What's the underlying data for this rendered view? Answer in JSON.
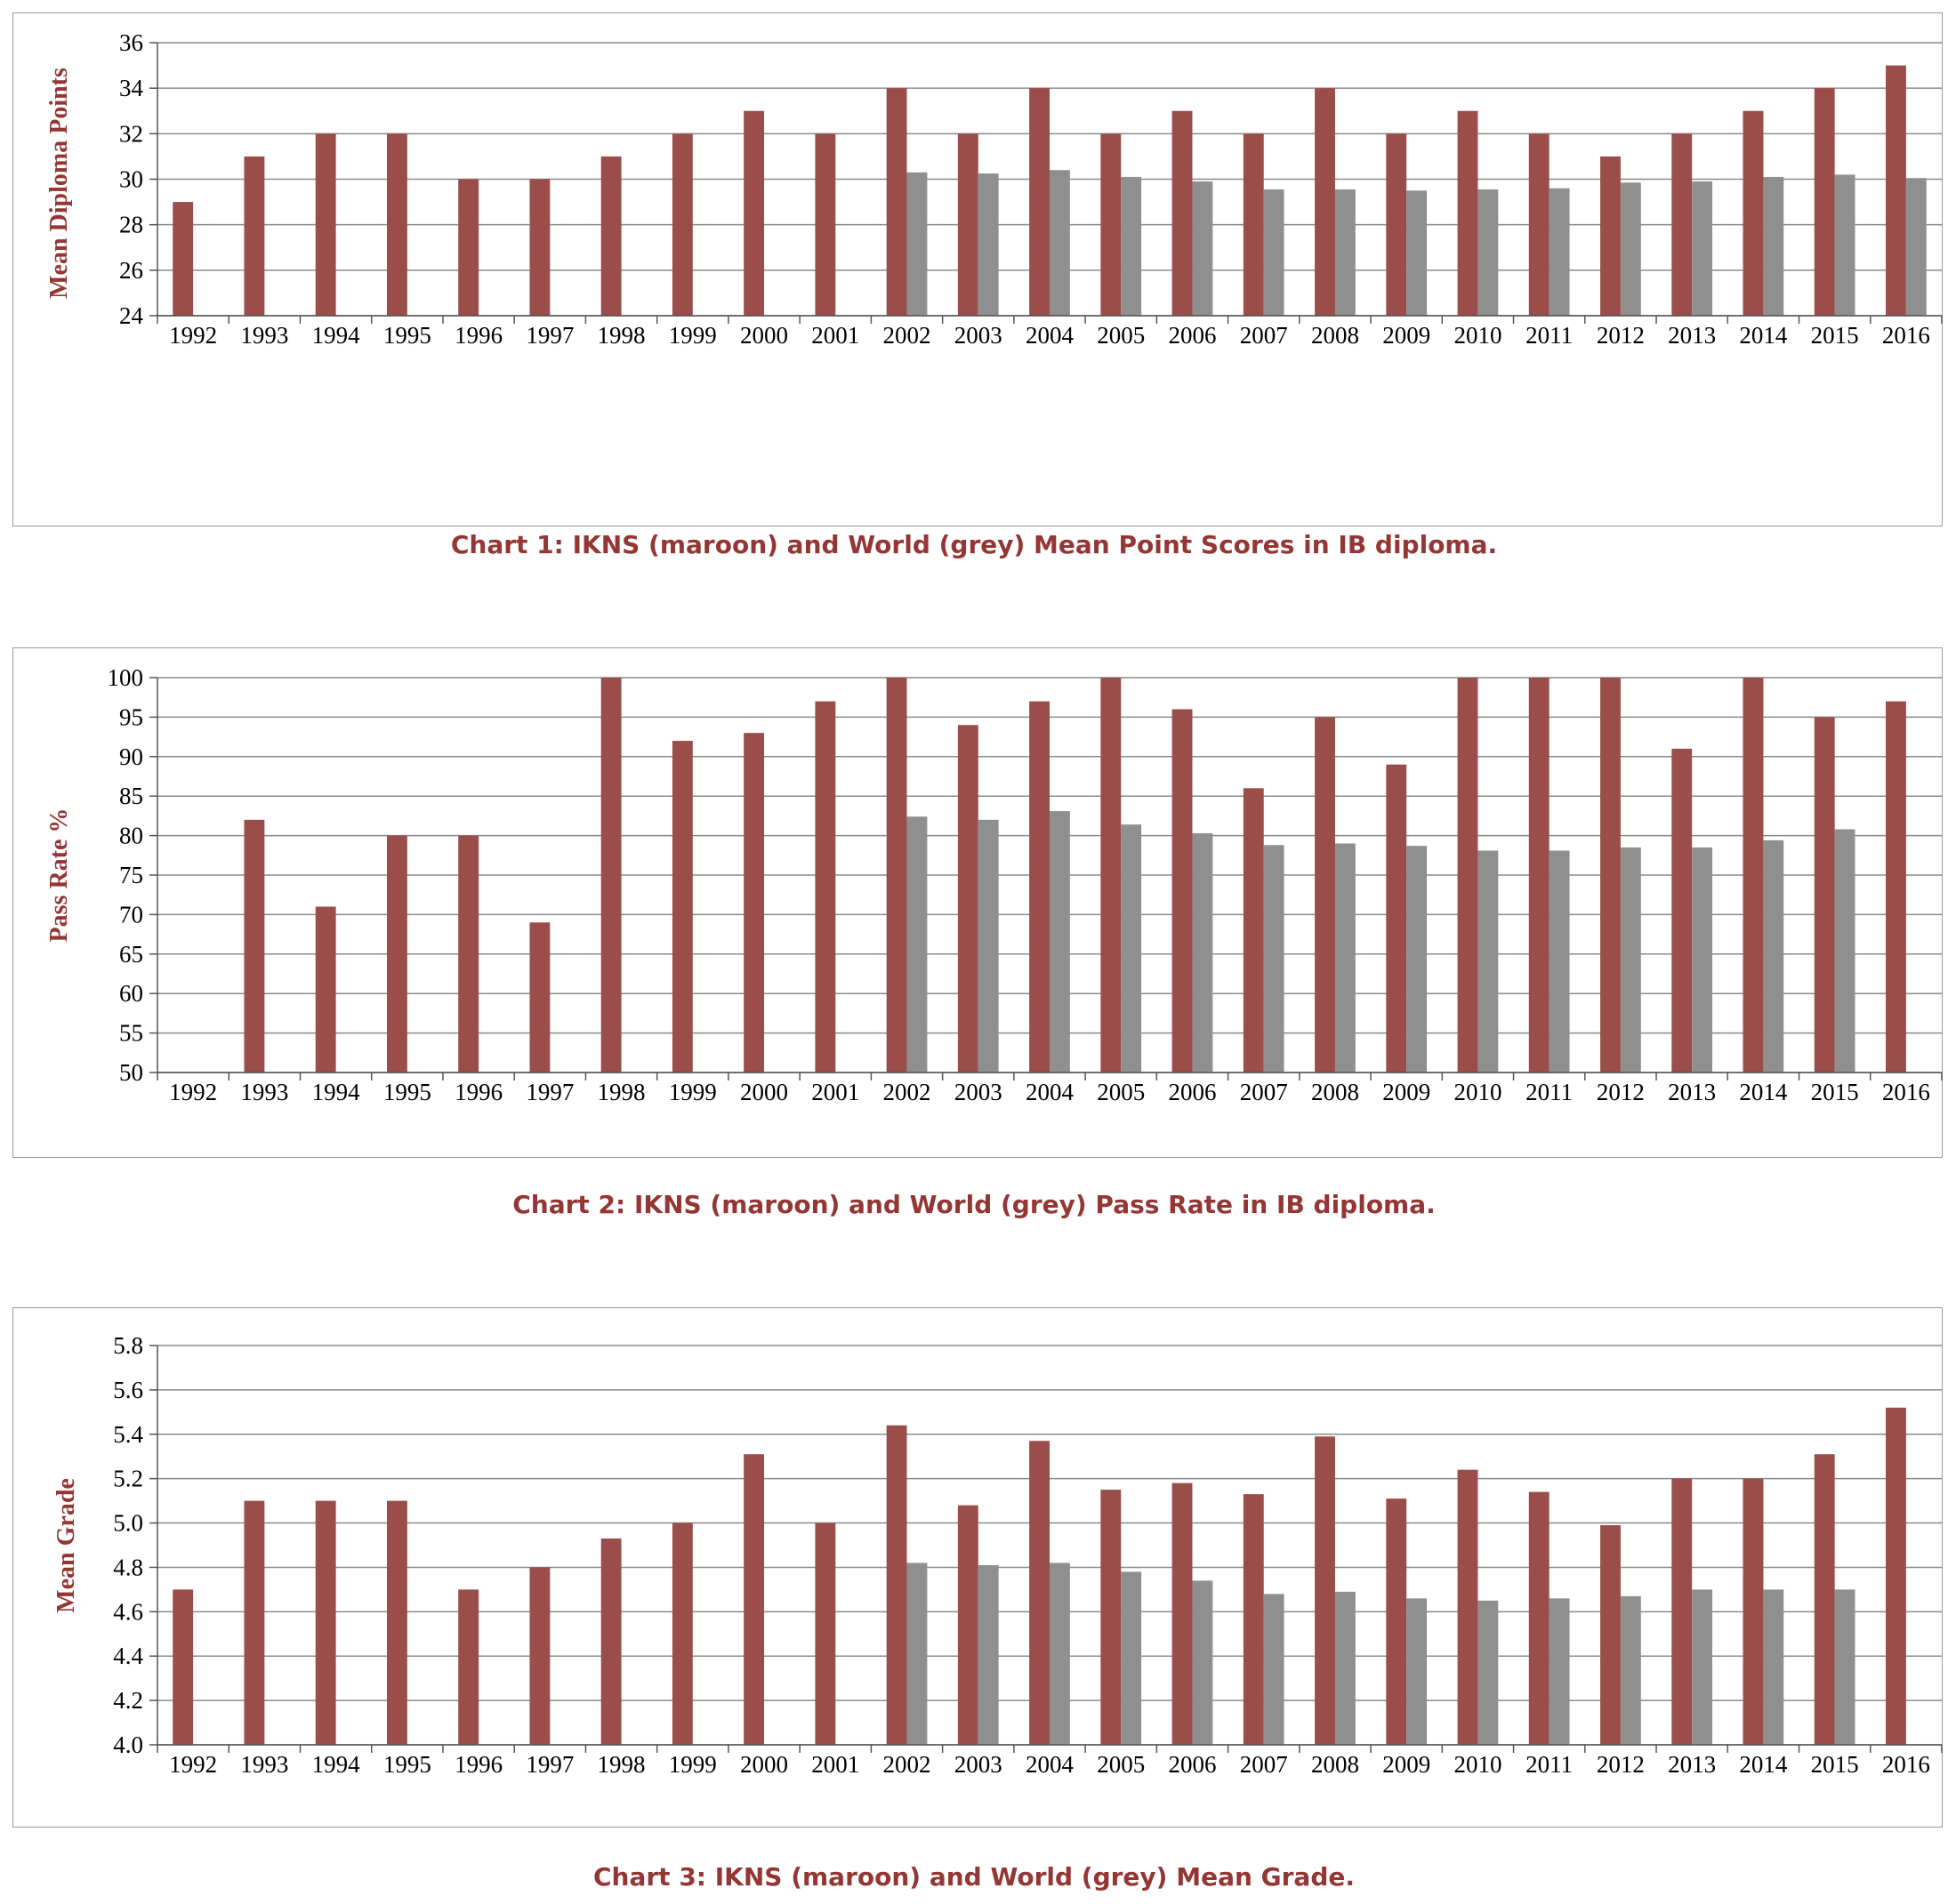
{
  "colors": {
    "ikns": "#9b4d49",
    "world": "#8f8f8f",
    "label": "#943634",
    "grid": "#8a8a8a"
  },
  "captions": {
    "chart1": "Chart 1:  IKNS (maroon) and World (grey) Mean Point Scores in IB diploma.",
    "chart2": "Chart 2:  IKNS (maroon) and World (grey) Pass Rate in IB diploma.",
    "chart3": "Chart 3:  IKNS (maroon) and World (grey) Mean Grade."
  },
  "chart_data": [
    {
      "type": "bar",
      "title": "Chart 1:  IKNS (maroon) and World (grey) Mean Point Scores in IB diploma.",
      "ylabel": "Mean Diploma Points",
      "xlabel": "",
      "ylim": [
        24,
        36
      ],
      "yticks": [
        "24",
        "26",
        "28",
        "30",
        "32",
        "34",
        "36"
      ],
      "grid": true,
      "categories": [
        "1992",
        "1993",
        "1994",
        "1995",
        "1996",
        "1997",
        "1998",
        "1999",
        "2000",
        "2001",
        "2002",
        "2003",
        "2004",
        "2005",
        "2006",
        "2007",
        "2008",
        "2009",
        "2010",
        "2011",
        "2012",
        "2013",
        "2014",
        "2015",
        "2016"
      ],
      "series": [
        {
          "name": "IKNS",
          "color": "#9b4d49",
          "values": [
            29,
            31,
            32,
            32,
            30,
            30,
            31,
            32,
            33,
            32,
            34,
            32,
            34,
            32,
            33,
            32,
            34,
            32,
            33,
            32,
            31,
            32,
            33,
            34,
            35
          ]
        },
        {
          "name": "World",
          "color": "#8f8f8f",
          "values": [
            null,
            null,
            null,
            null,
            null,
            null,
            null,
            null,
            null,
            null,
            30.3,
            30.25,
            30.4,
            30.1,
            29.9,
            29.55,
            29.55,
            29.5,
            29.55,
            29.6,
            29.85,
            29.9,
            30.1,
            30.2,
            30.05
          ]
        }
      ]
    },
    {
      "type": "bar",
      "title": "Chart 2:  IKNS (maroon) and World (grey) Pass Rate in IB diploma.",
      "ylabel": "Pass Rate %",
      "xlabel": "",
      "ylim": [
        50,
        100
      ],
      "yticks": [
        "50",
        "55",
        "60",
        "65",
        "70",
        "75",
        "80",
        "85",
        "90",
        "95",
        "100"
      ],
      "grid": true,
      "categories": [
        "1992",
        "1993",
        "1994",
        "1995",
        "1996",
        "1997",
        "1998",
        "1999",
        "2000",
        "2001",
        "2002",
        "2003",
        "2004",
        "2005",
        "2006",
        "2007",
        "2008",
        "2009",
        "2010",
        "2011",
        "2012",
        "2013",
        "2014",
        "2015",
        "2016"
      ],
      "series": [
        {
          "name": "IKNS",
          "color": "#9b4d49",
          "values": [
            null,
            82,
            71,
            80,
            80,
            69,
            100,
            92,
            93,
            97,
            100,
            94,
            97,
            100,
            96,
            86,
            95,
            89,
            100,
            100,
            100,
            91,
            100,
            95,
            97
          ]
        },
        {
          "name": "World",
          "color": "#8f8f8f",
          "values": [
            null,
            null,
            null,
            null,
            null,
            null,
            null,
            null,
            null,
            null,
            82.4,
            82,
            83.1,
            81.4,
            80.3,
            78.8,
            79,
            78.7,
            78.1,
            78.1,
            78.5,
            78.5,
            79.4,
            80.8,
            null
          ]
        }
      ]
    },
    {
      "type": "bar",
      "title": "Chart 3:  IKNS (maroon) and World (grey) Mean Grade.",
      "ylabel": "Mean Grade",
      "xlabel": "",
      "ylim": [
        4.0,
        5.8
      ],
      "yticks": [
        "4.0",
        "4.2",
        "4.4",
        "4.6",
        "4.8",
        "5.0",
        "5.2",
        "5.4",
        "5.6",
        "5.8"
      ],
      "grid": true,
      "categories": [
        "1992",
        "1993",
        "1994",
        "1995",
        "1996",
        "1997",
        "1998",
        "1999",
        "2000",
        "2001",
        "2002",
        "2003",
        "2004",
        "2005",
        "2006",
        "2007",
        "2008",
        "2009",
        "2010",
        "2011",
        "2012",
        "2013",
        "2014",
        "2015",
        "2016"
      ],
      "series": [
        {
          "name": "IKNS",
          "color": "#9b4d49",
          "values": [
            4.7,
            5.1,
            5.1,
            5.1,
            4.7,
            4.8,
            4.93,
            5.0,
            5.31,
            5.0,
            5.44,
            5.08,
            5.37,
            5.15,
            5.18,
            5.13,
            5.39,
            5.11,
            5.24,
            5.14,
            4.99,
            5.2,
            5.2,
            5.31,
            5.52
          ]
        },
        {
          "name": "World",
          "color": "#8f8f8f",
          "values": [
            null,
            null,
            null,
            null,
            null,
            null,
            null,
            null,
            null,
            null,
            4.82,
            4.81,
            4.82,
            4.78,
            4.74,
            4.68,
            4.69,
            4.66,
            4.65,
            4.66,
            4.67,
            4.7,
            4.7,
            4.7,
            null
          ]
        }
      ]
    }
  ]
}
